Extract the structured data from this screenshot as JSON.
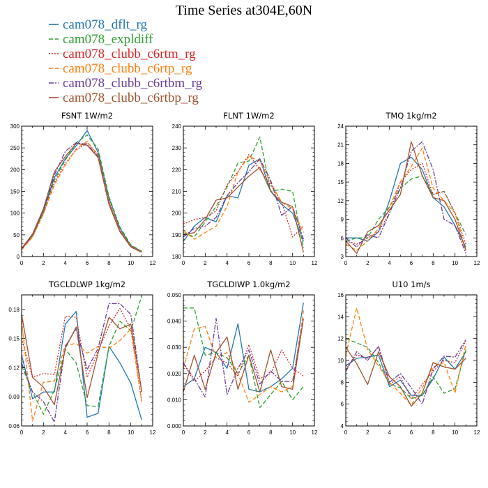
{
  "figure_title": "Time Series at304E,60N",
  "legend": [
    {
      "label": "cam078_dflt_rg",
      "color": "#1f77b4",
      "dash": "solid"
    },
    {
      "label": "cam078_expldiff",
      "color": "#2ca02c",
      "dash": "dashed"
    },
    {
      "label": "cam078_clubb_c6rtm_rg",
      "color": "#d62728",
      "dash": "dotted"
    },
    {
      "label": "cam078_clubb_c6rtp_rg",
      "color": "#ff7f0e",
      "dash": "dashed"
    },
    {
      "label": "cam078_clubb_c6rtbm_rg",
      "color": "#6a3d9a",
      "dash": "dashdot"
    },
    {
      "label": "cam078_clubb_c6rtbp_rg",
      "color": "#a0522d",
      "dash": "solid"
    }
  ],
  "chart_data": [
    {
      "type": "line",
      "title": "FSNT   1W/m2",
      "x": [
        0,
        1,
        2,
        3,
        4,
        5,
        6,
        7,
        8,
        9,
        10,
        11
      ],
      "xlim": [
        0,
        12
      ],
      "xticks": [
        0,
        2,
        4,
        6,
        8,
        10,
        12
      ],
      "ylim": [
        0,
        300
      ],
      "yticks": [
        0,
        50,
        100,
        150,
        200,
        250,
        300
      ],
      "ytick_labels": [
        "0",
        "50",
        "100",
        "150",
        "200",
        "250",
        "300"
      ],
      "series": [
        {
          "name": "cam078_dflt_rg",
          "values": [
            17,
            48,
            105,
            182,
            225,
            255,
            290,
            240,
            135,
            65,
            25,
            12
          ]
        },
        {
          "name": "cam078_expldiff",
          "values": [
            16,
            47,
            102,
            176,
            222,
            262,
            280,
            248,
            138,
            68,
            27,
            12
          ]
        },
        {
          "name": "cam078_clubb_c6rtm_rg",
          "values": [
            17,
            46,
            100,
            170,
            215,
            245,
            262,
            235,
            128,
            62,
            24,
            11
          ]
        },
        {
          "name": "cam078_clubb_c6rtp_rg",
          "values": [
            15,
            45,
            98,
            165,
            210,
            248,
            265,
            232,
            125,
            60,
            23,
            11
          ]
        },
        {
          "name": "cam078_clubb_c6rtbm_rg",
          "values": [
            18,
            50,
            108,
            188,
            242,
            262,
            258,
            230,
            122,
            58,
            22,
            10
          ]
        },
        {
          "name": "cam078_clubb_c6rtbp_rg",
          "values": [
            19,
            52,
            110,
            195,
            230,
            260,
            256,
            228,
            120,
            57,
            22,
            10
          ]
        }
      ]
    },
    {
      "type": "line",
      "title": "FLNT   1W/m2",
      "x": [
        0,
        1,
        2,
        3,
        4,
        5,
        6,
        7,
        8,
        9,
        10,
        11
      ],
      "xlim": [
        0,
        12
      ],
      "xticks": [
        0,
        2,
        4,
        6,
        8,
        10,
        12
      ],
      "ylim": [
        180,
        240
      ],
      "yticks": [
        180,
        190,
        200,
        210,
        220,
        230,
        240
      ],
      "ytick_labels": [
        "180",
        "190",
        "200",
        "210",
        "220",
        "230",
        "240"
      ],
      "series": [
        {
          "name": "cam078_dflt_rg",
          "values": [
            187,
            194,
            198,
            196,
            208,
            207,
            222,
            225,
            210,
            204,
            200,
            187
          ]
        },
        {
          "name": "cam078_expldiff",
          "values": [
            191,
            189,
            196,
            203,
            212,
            223,
            224,
            235,
            210,
            211,
            210,
            184
          ]
        },
        {
          "name": "cam078_clubb_c6rtm_rg",
          "values": [
            195,
            197,
            198,
            201,
            213,
            219,
            227,
            220,
            213,
            205,
            189,
            194
          ]
        },
        {
          "name": "cam078_clubb_c6rtp_rg",
          "values": [
            192,
            188,
            191,
            194,
            203,
            219,
            226,
            224,
            214,
            205,
            202,
            191
          ]
        },
        {
          "name": "cam078_clubb_c6rtbm_rg",
          "values": [
            189,
            193,
            194,
            198,
            208,
            214,
            219,
            225,
            215,
            199,
            203,
            188
          ]
        },
        {
          "name": "cam078_clubb_c6rtbp_rg",
          "values": [
            190,
            191,
            197,
            206,
            207,
            212,
            217,
            221,
            210,
            205,
            203,
            182
          ]
        }
      ]
    },
    {
      "type": "line",
      "title": "TMQ   1kg/m2",
      "x": [
        0,
        1,
        2,
        3,
        4,
        5,
        6,
        7,
        8,
        9,
        10,
        11
      ],
      "xlim": [
        0,
        12
      ],
      "xticks": [
        0,
        2,
        4,
        6,
        8,
        10,
        12
      ],
      "ylim": [
        3,
        24
      ],
      "yticks": [
        3,
        6,
        9,
        12,
        15,
        18,
        21,
        24
      ],
      "ytick_labels": [
        "3",
        "6",
        "9",
        "12",
        "15",
        "18",
        "21",
        "24"
      ],
      "series": [
        {
          "name": "cam078_dflt_rg",
          "values": [
            6,
            6,
            5.5,
            7,
            12,
            18,
            19,
            17,
            12.5,
            11,
            8,
            4.5
          ]
        },
        {
          "name": "cam078_expldiff",
          "values": [
            5.5,
            6,
            6,
            9,
            11,
            14,
            15.5,
            16,
            13,
            13.5,
            10,
            6.5
          ]
        },
        {
          "name": "cam078_clubb_c6rtm_rg",
          "values": [
            5.5,
            5,
            6,
            7,
            10,
            15,
            17,
            18,
            13,
            13.5,
            10,
            5
          ]
        },
        {
          "name": "cam078_clubb_c6rtp_rg",
          "values": [
            5,
            4,
            5.5,
            7.5,
            11,
            15,
            17.5,
            20.5,
            14,
            12,
            10,
            4
          ]
        },
        {
          "name": "cam078_clubb_c6rtbm_rg",
          "values": [
            6,
            4.5,
            6.5,
            6,
            10,
            14,
            20,
            21.5,
            17,
            9,
            8,
            3.5
          ]
        },
        {
          "name": "cam078_clubb_c6rtbp_rg",
          "values": [
            5.5,
            3.5,
            7,
            8,
            10.5,
            13,
            21.5,
            16,
            12.5,
            12,
            9,
            4
          ]
        }
      ]
    },
    {
      "type": "line",
      "title": "TGCLDLWP   1kg/m2",
      "x": [
        0,
        1,
        2,
        3,
        4,
        5,
        6,
        7,
        8,
        9,
        10,
        11
      ],
      "xlim": [
        0,
        12
      ],
      "xticks": [
        0,
        2,
        4,
        6,
        8,
        10,
        12
      ],
      "ylim": [
        0.06,
        0.195
      ],
      "yticks": [
        0.06,
        0.09,
        0.12,
        0.15,
        0.18
      ],
      "ytick_labels": [
        "0.06",
        "0.09",
        "0.12",
        "0.15",
        "0.18"
      ],
      "series": [
        {
          "name": "cam078_dflt_rg",
          "values": [
            0.133,
            0.088,
            0.095,
            0.095,
            0.165,
            0.178,
            0.069,
            0.073,
            0.142,
            0.125,
            0.104,
            0.066
          ]
        },
        {
          "name": "cam078_expldiff",
          "values": [
            0.122,
            0.095,
            0.072,
            0.097,
            0.139,
            0.125,
            0.081,
            0.08,
            0.142,
            0.168,
            0.158,
            0.194
          ]
        },
        {
          "name": "cam078_clubb_c6rtm_rg",
          "values": [
            0.15,
            0.11,
            0.114,
            0.113,
            0.173,
            0.172,
            0.11,
            0.137,
            0.163,
            0.181,
            0.16,
            0.085
          ]
        },
        {
          "name": "cam078_clubb_c6rtp_rg",
          "values": [
            0.168,
            0.065,
            0.105,
            0.106,
            0.143,
            0.145,
            0.135,
            0.142,
            0.14,
            0.148,
            0.16,
            0.085
          ]
        },
        {
          "name": "cam078_clubb_c6rtbm_rg",
          "values": [
            0.125,
            0.095,
            0.085,
            0.064,
            0.142,
            0.16,
            0.118,
            0.14,
            0.186,
            0.186,
            0.175,
            0.095
          ]
        },
        {
          "name": "cam078_clubb_c6rtbp_rg",
          "values": [
            0.175,
            0.11,
            0.1,
            0.082,
            0.14,
            0.162,
            0.089,
            0.135,
            0.172,
            0.16,
            0.165,
            0.095
          ]
        }
      ]
    },
    {
      "type": "line",
      "title": "TGCLDIWP   1.0kg/m2",
      "x": [
        0,
        1,
        2,
        3,
        4,
        5,
        6,
        7,
        8,
        9,
        10,
        11
      ],
      "xlim": [
        0,
        12
      ],
      "xticks": [
        0,
        2,
        4,
        6,
        8,
        10,
        12
      ],
      "ylim": [
        0.0,
        0.05
      ],
      "yticks": [
        0.0,
        0.01,
        0.02,
        0.03,
        0.04,
        0.05
      ],
      "ytick_labels": [
        "0.000",
        "0.010",
        "0.020",
        "0.030",
        "0.040",
        "0.050"
      ],
      "series": [
        {
          "name": "cam078_dflt_rg",
          "values": [
            0.015,
            0.018,
            0.03,
            0.028,
            0.022,
            0.039,
            0.014,
            0.013,
            0.015,
            0.018,
            0.022,
            0.047
          ]
        },
        {
          "name": "cam078_expldiff",
          "values": [
            0.045,
            0.045,
            0.027,
            0.028,
            0.026,
            0.02,
            0.027,
            0.007,
            0.012,
            0.017,
            0.01,
            0.015
          ]
        },
        {
          "name": "cam078_clubb_c6rtm_rg",
          "values": [
            0.024,
            0.017,
            0.021,
            0.026,
            0.024,
            0.019,
            0.031,
            0.018,
            0.02,
            0.029,
            0.022,
            0.019
          ]
        },
        {
          "name": "cam078_clubb_c6rtp_rg",
          "values": [
            0.022,
            0.037,
            0.038,
            0.026,
            0.028,
            0.02,
            0.009,
            0.012,
            0.015,
            0.013,
            0.015,
            0.044
          ]
        },
        {
          "name": "cam078_clubb_c6rtbm_rg",
          "values": [
            0.024,
            0.018,
            0.011,
            0.041,
            0.012,
            0.022,
            0.029,
            0.016,
            0.021,
            0.017,
            0.017,
            0.041
          ]
        },
        {
          "name": "cam078_clubb_c6rtbp_rg",
          "values": [
            0.013,
            0.027,
            0.014,
            0.028,
            0.034,
            0.014,
            0.027,
            0.013,
            0.029,
            0.015,
            0.014,
            0.041
          ]
        }
      ]
    },
    {
      "type": "line",
      "title": "U10   1m/s",
      "x": [
        0,
        1,
        2,
        3,
        4,
        5,
        6,
        7,
        8,
        9,
        10,
        11
      ],
      "xlim": [
        0,
        12
      ],
      "xticks": [
        0,
        2,
        4,
        6,
        8,
        10,
        12
      ],
      "ylim": [
        4,
        16
      ],
      "yticks": [
        4,
        6,
        8,
        10,
        12,
        14,
        16
      ],
      "ytick_labels": [
        "4",
        "6",
        "8",
        "10",
        "12",
        "14",
        "16"
      ],
      "series": [
        {
          "name": "cam078_dflt_rg",
          "values": [
            9.5,
            10.2,
            10.3,
            10.5,
            7.6,
            8.2,
            6.8,
            6.8,
            8.3,
            10.3,
            9.2,
            10.8
          ]
        },
        {
          "name": "cam078_expldiff",
          "values": [
            12.0,
            11.6,
            11.2,
            9.8,
            7.8,
            7.5,
            6.5,
            6.8,
            8.5,
            7.0,
            7.4,
            11.0
          ]
        },
        {
          "name": "cam078_clubb_c6rtm_rg",
          "values": [
            9.2,
            10.5,
            10.2,
            11.2,
            7.8,
            8.5,
            6.5,
            7.8,
            9.0,
            10.0,
            9.8,
            11.8
          ]
        },
        {
          "name": "cam078_clubb_c6rtp_rg",
          "values": [
            10.5,
            14.8,
            11.0,
            9.5,
            8.0,
            7.0,
            5.9,
            7.5,
            9.4,
            9.8,
            7.0,
            11.5
          ]
        },
        {
          "name": "cam078_clubb_c6rtbm_rg",
          "values": [
            9.0,
            10.8,
            10.0,
            11.3,
            8.0,
            8.8,
            7.5,
            6.0,
            9.2,
            10.4,
            10.3,
            11.9
          ]
        },
        {
          "name": "cam078_clubb_c6rtbp_rg",
          "values": [
            11.2,
            9.7,
            7.8,
            10.8,
            8.5,
            7.6,
            5.8,
            7.0,
            9.8,
            9.4,
            9.2,
            10.2
          ]
        }
      ]
    }
  ]
}
